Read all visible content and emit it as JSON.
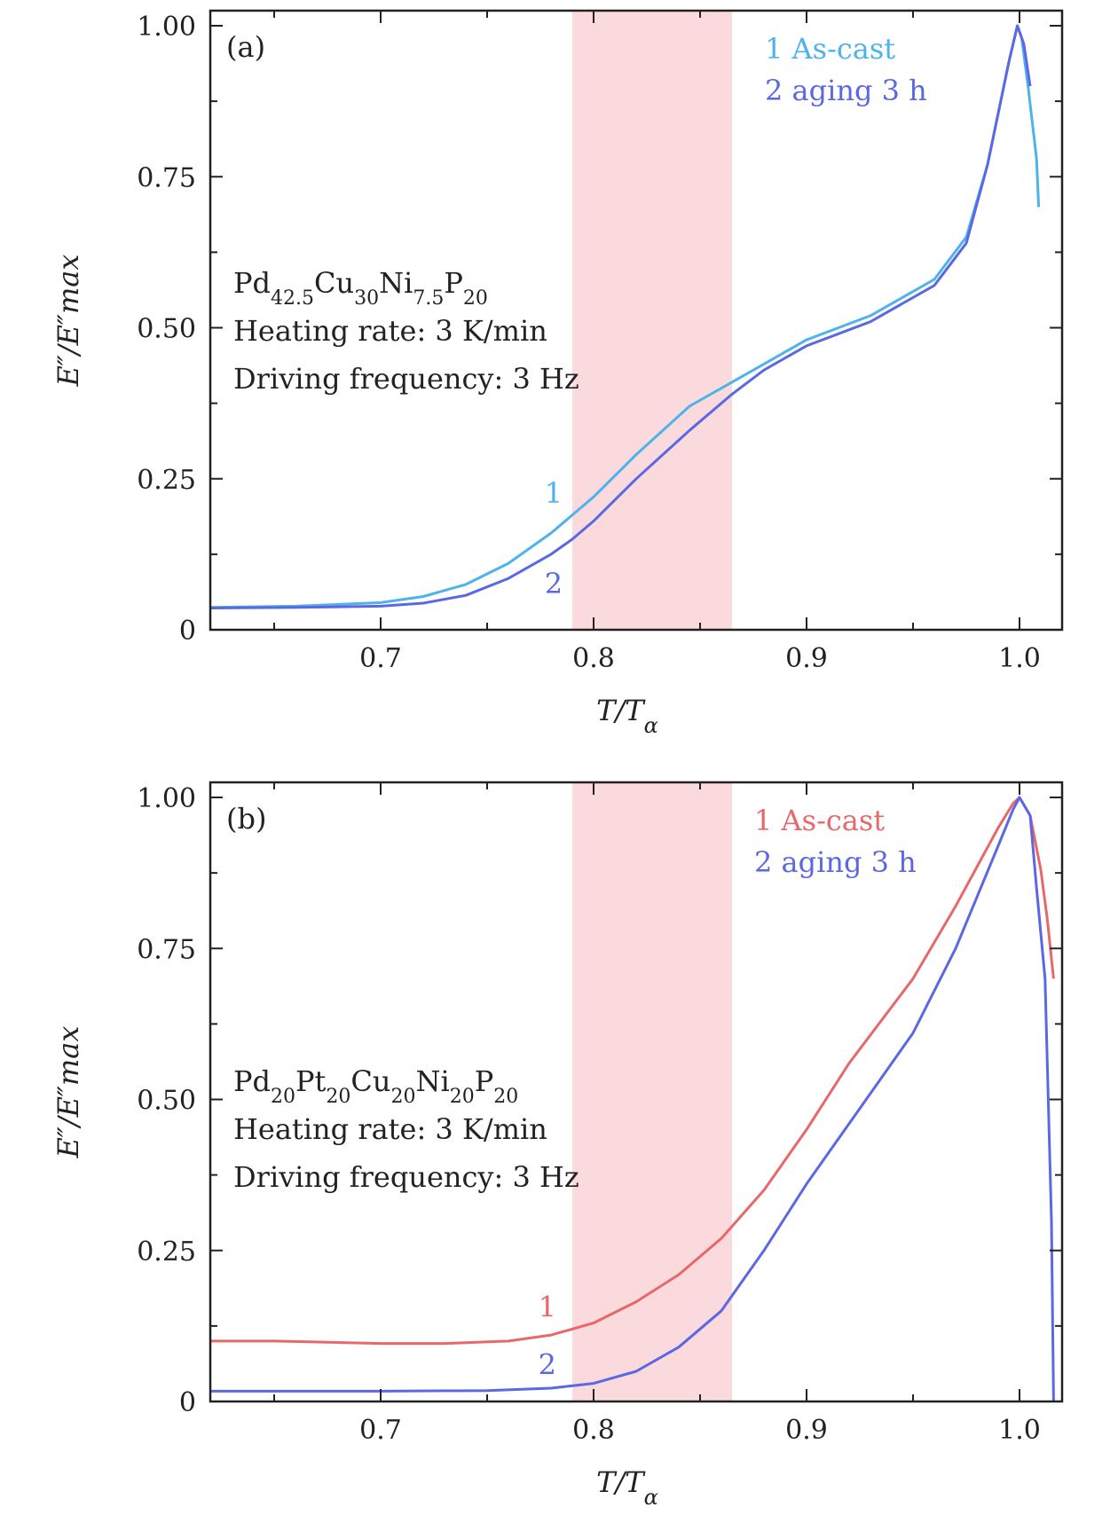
{
  "chart_data": [
    {
      "type": "line",
      "panel": "(a)",
      "xlabel_main": "T",
      "xlabel_sub": "α",
      "ylabel": "E″/E″max",
      "xlim": [
        0.62,
        1.02
      ],
      "ylim": [
        0,
        1.0
      ],
      "x_ticks": [
        0.7,
        0.8,
        0.9,
        1.0
      ],
      "x_tick_labels": [
        "0.7",
        "0.8",
        "0.9",
        "1.0"
      ],
      "y_ticks": [
        0,
        0.25,
        0.5,
        0.75,
        1.0
      ],
      "y_tick_labels": [
        "0",
        "0.25",
        "0.50",
        "0.75",
        "1.00"
      ],
      "shaded_region": {
        "x": [
          0.79,
          0.865
        ],
        "color": "#fadadc"
      },
      "composition": {
        "parts": [
          [
            "Pd",
            "42.5"
          ],
          [
            "Cu",
            "30"
          ],
          [
            "Ni",
            "7.5"
          ],
          [
            "P",
            "20"
          ]
        ]
      },
      "heating_rate": "Heating rate: 3 K/min",
      "driving_frequency": "Driving frequency: 3 Hz",
      "series": [
        {
          "name": "As-cast",
          "legend": "1 As-cast",
          "label": "1",
          "label_pos": [
            0.777,
            0.21
          ],
          "color": "#4db3ea",
          "x": [
            0.62,
            0.66,
            0.7,
            0.72,
            0.74,
            0.76,
            0.78,
            0.79,
            0.8,
            0.82,
            0.845,
            0.865,
            0.88,
            0.9,
            0.93,
            0.96,
            0.975,
            0.985,
            0.995,
            0.999,
            1.001,
            1.004,
            1.008,
            1.009
          ],
          "values": [
            0.037,
            0.039,
            0.045,
            0.055,
            0.075,
            0.11,
            0.16,
            0.19,
            0.22,
            0.29,
            0.37,
            0.41,
            0.44,
            0.48,
            0.52,
            0.58,
            0.65,
            0.77,
            0.94,
            1.0,
            0.98,
            0.9,
            0.78,
            0.7
          ]
        },
        {
          "name": "aging 3 h",
          "legend": "2 aging 3 h",
          "label": "2",
          "label_pos": [
            0.777,
            0.06
          ],
          "color": "#5b68e3",
          "x": [
            0.62,
            0.66,
            0.7,
            0.72,
            0.74,
            0.76,
            0.78,
            0.79,
            0.8,
            0.82,
            0.845,
            0.865,
            0.88,
            0.9,
            0.93,
            0.96,
            0.975,
            0.985,
            0.995,
            0.999,
            1.002,
            1.005
          ],
          "values": [
            0.036,
            0.037,
            0.039,
            0.044,
            0.057,
            0.085,
            0.125,
            0.15,
            0.18,
            0.25,
            0.33,
            0.39,
            0.43,
            0.47,
            0.51,
            0.57,
            0.64,
            0.77,
            0.94,
            1.0,
            0.97,
            0.9
          ]
        }
      ]
    },
    {
      "type": "line",
      "panel": "(b)",
      "xlabel_main": "T",
      "xlabel_sub": "α",
      "ylabel": "E″/E″max",
      "xlim": [
        0.62,
        1.02
      ],
      "ylim": [
        0,
        1.0
      ],
      "x_ticks": [
        0.7,
        0.8,
        0.9,
        1.0
      ],
      "x_tick_labels": [
        "0.7",
        "0.8",
        "0.9",
        "1.0"
      ],
      "y_ticks": [
        0,
        0.25,
        0.5,
        0.75,
        1.0
      ],
      "y_tick_labels": [
        "0",
        "0.25",
        "0.50",
        "0.75",
        "1.00"
      ],
      "shaded_region": {
        "x": [
          0.79,
          0.865
        ],
        "color": "#fadadc"
      },
      "composition": {
        "parts": [
          [
            "Pd",
            "20"
          ],
          [
            "Pt",
            "20"
          ],
          [
            "Cu",
            "20"
          ],
          [
            "Ni",
            "20"
          ],
          [
            "P",
            "20"
          ]
        ]
      },
      "heating_rate": "Heating rate: 3 K/min",
      "driving_frequency": "Driving frequency: 3 Hz",
      "series": [
        {
          "name": "As-cast",
          "legend": "1 As-cast",
          "label": "1",
          "label_pos": [
            0.774,
            0.14
          ],
          "color": "#e8686a",
          "x": [
            0.62,
            0.65,
            0.7,
            0.73,
            0.76,
            0.78,
            0.8,
            0.82,
            0.84,
            0.86,
            0.88,
            0.9,
            0.92,
            0.95,
            0.97,
            0.99,
            0.997,
            1.0,
            1.005,
            1.01,
            1.013,
            1.016
          ],
          "values": [
            0.1,
            0.1,
            0.096,
            0.096,
            0.1,
            0.11,
            0.13,
            0.165,
            0.21,
            0.27,
            0.35,
            0.45,
            0.56,
            0.7,
            0.82,
            0.95,
            0.99,
            1.0,
            0.97,
            0.88,
            0.8,
            0.7
          ]
        },
        {
          "name": "aging 3 h",
          "legend": "2 aging 3 h",
          "label": "2",
          "label_pos": [
            0.774,
            0.045
          ],
          "color": "#5b68e3",
          "x": [
            0.62,
            0.7,
            0.75,
            0.78,
            0.8,
            0.82,
            0.84,
            0.86,
            0.88,
            0.9,
            0.92,
            0.95,
            0.97,
            0.99,
            0.997,
            1.0,
            1.005,
            1.008,
            1.012,
            1.015,
            1.016
          ],
          "values": [
            0.017,
            0.017,
            0.018,
            0.022,
            0.03,
            0.05,
            0.09,
            0.15,
            0.25,
            0.36,
            0.46,
            0.61,
            0.75,
            0.92,
            0.98,
            1.0,
            0.97,
            0.85,
            0.7,
            0.3,
            0.0
          ]
        }
      ]
    }
  ]
}
